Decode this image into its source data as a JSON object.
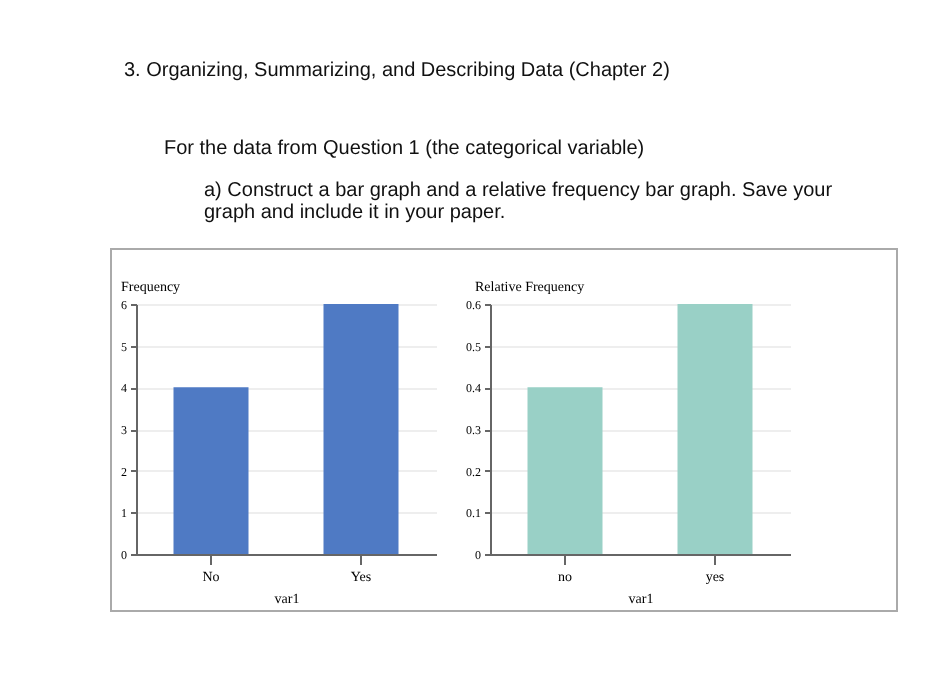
{
  "chart_data": [
    {
      "type": "bar",
      "title": "3. Organizing, Summarizing, and Describing Data (Chapter 2)",
      "annotations": [
        "For the data from Question 1 (the categorical variable)",
        "a) Construct a bar graph and a relative frequency bar graph. Save your graph and include it in your paper."
      ],
      "categories": [
        "No",
        "Yes"
      ],
      "values": [
        4,
        6
      ],
      "color": "#4f7ac4",
      "ylim": [
        0,
        6
      ],
      "yticks": [
        0,
        1,
        2,
        3,
        4,
        5,
        6
      ],
      "ylabel": "Frequency",
      "xlabel": "var1",
      "grid": "y"
    },
    {
      "type": "bar",
      "categories": [
        "no",
        "yes"
      ],
      "values": [
        0.4,
        0.6
      ],
      "color": "#99d0c6",
      "ylim": [
        0,
        0.6
      ],
      "yticks": [
        {
          "value": 0,
          "label": "0"
        },
        0.1,
        0.2,
        0.3,
        0.4,
        0.5,
        0.6
      ],
      "ylabel": "Relative Frequency",
      "xlabel": "var1",
      "grid": "y"
    }
  ]
}
